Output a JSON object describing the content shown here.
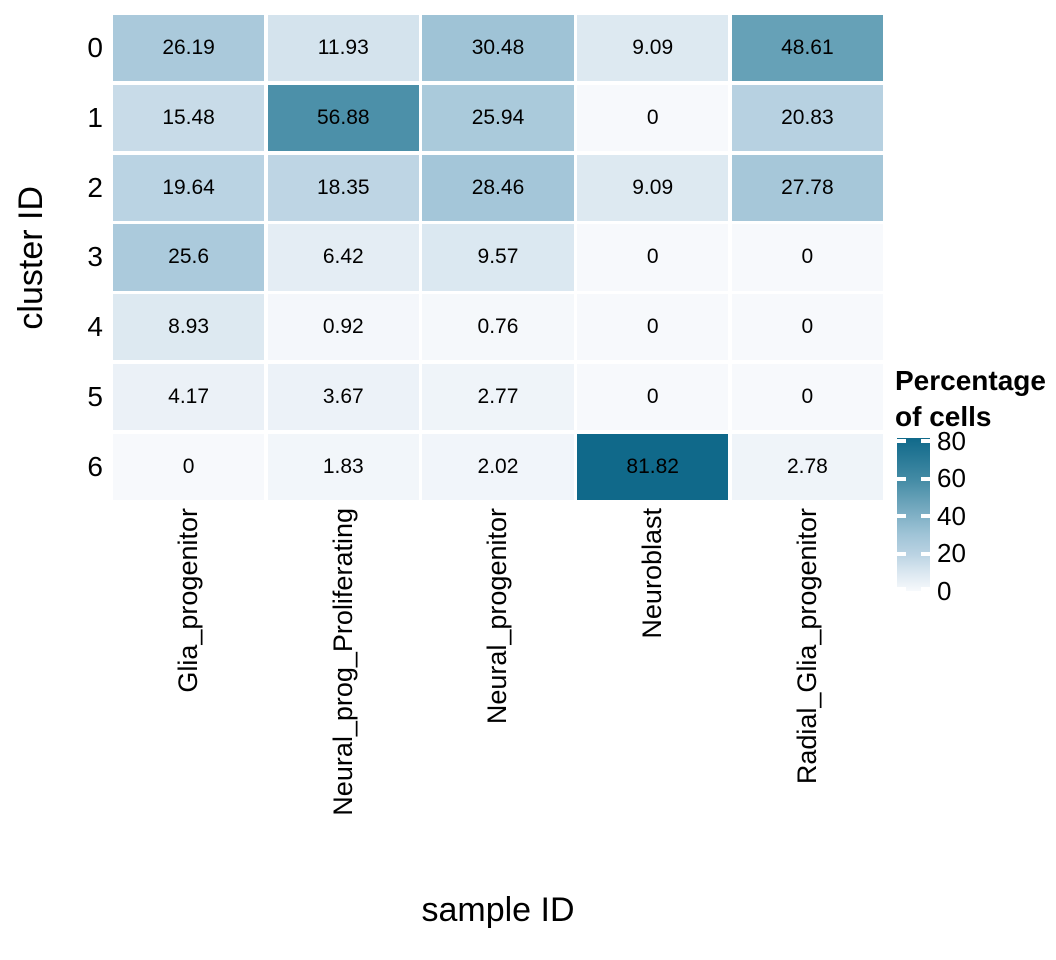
{
  "chart_data": {
    "type": "heatmap",
    "title": "",
    "xlabel": "sample ID",
    "ylabel": "cluster ID",
    "x_categories": [
      "Glia_progenitor",
      "Neural_prog_Proliferating",
      "Neural_progenitor",
      "Neuroblast",
      "Radial_Glia_progenitor"
    ],
    "y_categories": [
      "0",
      "1",
      "2",
      "3",
      "4",
      "5",
      "6"
    ],
    "values": [
      [
        26.19,
        11.93,
        30.48,
        9.09,
        48.61
      ],
      [
        15.48,
        56.88,
        25.94,
        0,
        20.83
      ],
      [
        19.64,
        18.35,
        28.46,
        9.09,
        27.78
      ],
      [
        25.6,
        6.42,
        9.57,
        0,
        0
      ],
      [
        8.93,
        0.92,
        0.76,
        0,
        0
      ],
      [
        4.17,
        3.67,
        2.77,
        0,
        0
      ],
      [
        0,
        1.83,
        2.02,
        81.82,
        2.78
      ]
    ],
    "cell_labels": [
      [
        "26.19",
        "11.93",
        "30.48",
        "9.09",
        "48.61"
      ],
      [
        "15.48",
        "56.88",
        "25.94",
        "0",
        "20.83"
      ],
      [
        "19.64",
        "18.35",
        "28.46",
        "9.09",
        "27.78"
      ],
      [
        "25.6",
        "6.42",
        "9.57",
        "0",
        "0"
      ],
      [
        "8.93",
        "0.92",
        "0.76",
        "0",
        "0"
      ],
      [
        "4.17",
        "3.67",
        "2.77",
        "0",
        "0"
      ],
      [
        "0",
        "1.83",
        "2.02",
        "81.82",
        "2.78"
      ]
    ],
    "color_scale": {
      "min": 0,
      "max": 81.82,
      "low_color": "#f7f9fc",
      "high_color": "#10698a",
      "stops": [
        [
          0,
          "#f7f9fc"
        ],
        [
          10,
          "#dae7f0"
        ],
        [
          20,
          "#b9d2e2"
        ],
        [
          30,
          "#a0c4d7"
        ],
        [
          50,
          "#629eb5"
        ],
        [
          60,
          "#428aa4"
        ],
        [
          81.82,
          "#10698a"
        ]
      ]
    },
    "legend": {
      "title_line1": "Percentage",
      "title_line2": "of cells",
      "tick_labels": [
        "80",
        "60",
        "40",
        "20",
        "0"
      ],
      "tick_values": [
        80,
        60,
        40,
        20,
        0
      ],
      "position": "right"
    },
    "layout": {
      "x_tick_rotation_deg": 90,
      "grid": "white gaps between cells, no axis lines",
      "cell_text_color": "#000000",
      "background": "#ffffff"
    }
  }
}
